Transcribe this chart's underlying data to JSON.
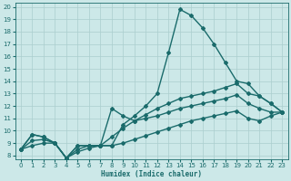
{
  "xlabel": "Humidex (Indice chaleur)",
  "xlim": [
    -0.5,
    23.5
  ],
  "ylim": [
    7.7,
    20.3
  ],
  "xticks": [
    0,
    1,
    2,
    3,
    4,
    5,
    6,
    7,
    8,
    9,
    10,
    11,
    12,
    13,
    14,
    15,
    16,
    17,
    18,
    19,
    20,
    21,
    22,
    23
  ],
  "yticks": [
    8,
    9,
    10,
    11,
    12,
    13,
    14,
    15,
    16,
    17,
    18,
    19,
    20
  ],
  "bg_color": "#cce8e8",
  "line_color": "#1a6b6b",
  "grid_color": "#aacece",
  "lines": [
    {
      "x": [
        0,
        1,
        2,
        3,
        4,
        5,
        6,
        7,
        8,
        9,
        10,
        11,
        12,
        13,
        14,
        15,
        16,
        17,
        18,
        19,
        20,
        21,
        22,
        23
      ],
      "y": [
        8.5,
        9.7,
        9.5,
        9.0,
        7.8,
        8.8,
        8.8,
        8.8,
        8.8,
        10.5,
        11.2,
        12.0,
        13.0,
        16.3,
        19.8,
        19.3,
        18.3,
        17.0,
        15.5,
        14.0,
        13.8,
        12.8,
        12.2,
        11.5
      ],
      "marker": "D",
      "lw": 1.0,
      "ms": 2.0
    },
    {
      "x": [
        0,
        1,
        2,
        3,
        4,
        5,
        6,
        7,
        8,
        9,
        10,
        11,
        12,
        13,
        14,
        15,
        16,
        17,
        18,
        19,
        20,
        21,
        22,
        23
      ],
      "y": [
        8.5,
        9.7,
        9.5,
        9.0,
        7.8,
        8.8,
        8.8,
        8.8,
        9.5,
        10.2,
        10.8,
        11.3,
        11.8,
        12.2,
        12.6,
        12.8,
        13.0,
        13.2,
        13.5,
        13.8,
        13.0,
        12.8,
        12.2,
        11.5
      ],
      "marker": "D",
      "lw": 1.0,
      "ms": 2.0
    },
    {
      "x": [
        0,
        1,
        2,
        3,
        4,
        5,
        6,
        7,
        8,
        9,
        10,
        11,
        12,
        13,
        14,
        15,
        16,
        17,
        18,
        19,
        20,
        21,
        22,
        23
      ],
      "y": [
        8.5,
        9.2,
        9.3,
        9.0,
        7.8,
        8.5,
        8.8,
        8.8,
        11.8,
        11.2,
        10.8,
        11.0,
        11.2,
        11.5,
        11.8,
        12.0,
        12.2,
        12.4,
        12.6,
        12.9,
        12.2,
        11.8,
        11.5,
        11.5
      ],
      "marker": "D",
      "lw": 1.0,
      "ms": 2.0
    },
    {
      "x": [
        0,
        1,
        2,
        3,
        4,
        5,
        6,
        7,
        8,
        9,
        10,
        11,
        12,
        13,
        14,
        15,
        16,
        17,
        18,
        19,
        20,
        21,
        22,
        23
      ],
      "y": [
        8.5,
        8.8,
        9.0,
        9.0,
        7.8,
        8.3,
        8.6,
        8.8,
        8.8,
        9.0,
        9.3,
        9.6,
        9.9,
        10.2,
        10.5,
        10.8,
        11.0,
        11.2,
        11.4,
        11.6,
        11.0,
        10.8,
        11.2,
        11.5
      ],
      "marker": "D",
      "lw": 1.0,
      "ms": 2.0
    }
  ]
}
